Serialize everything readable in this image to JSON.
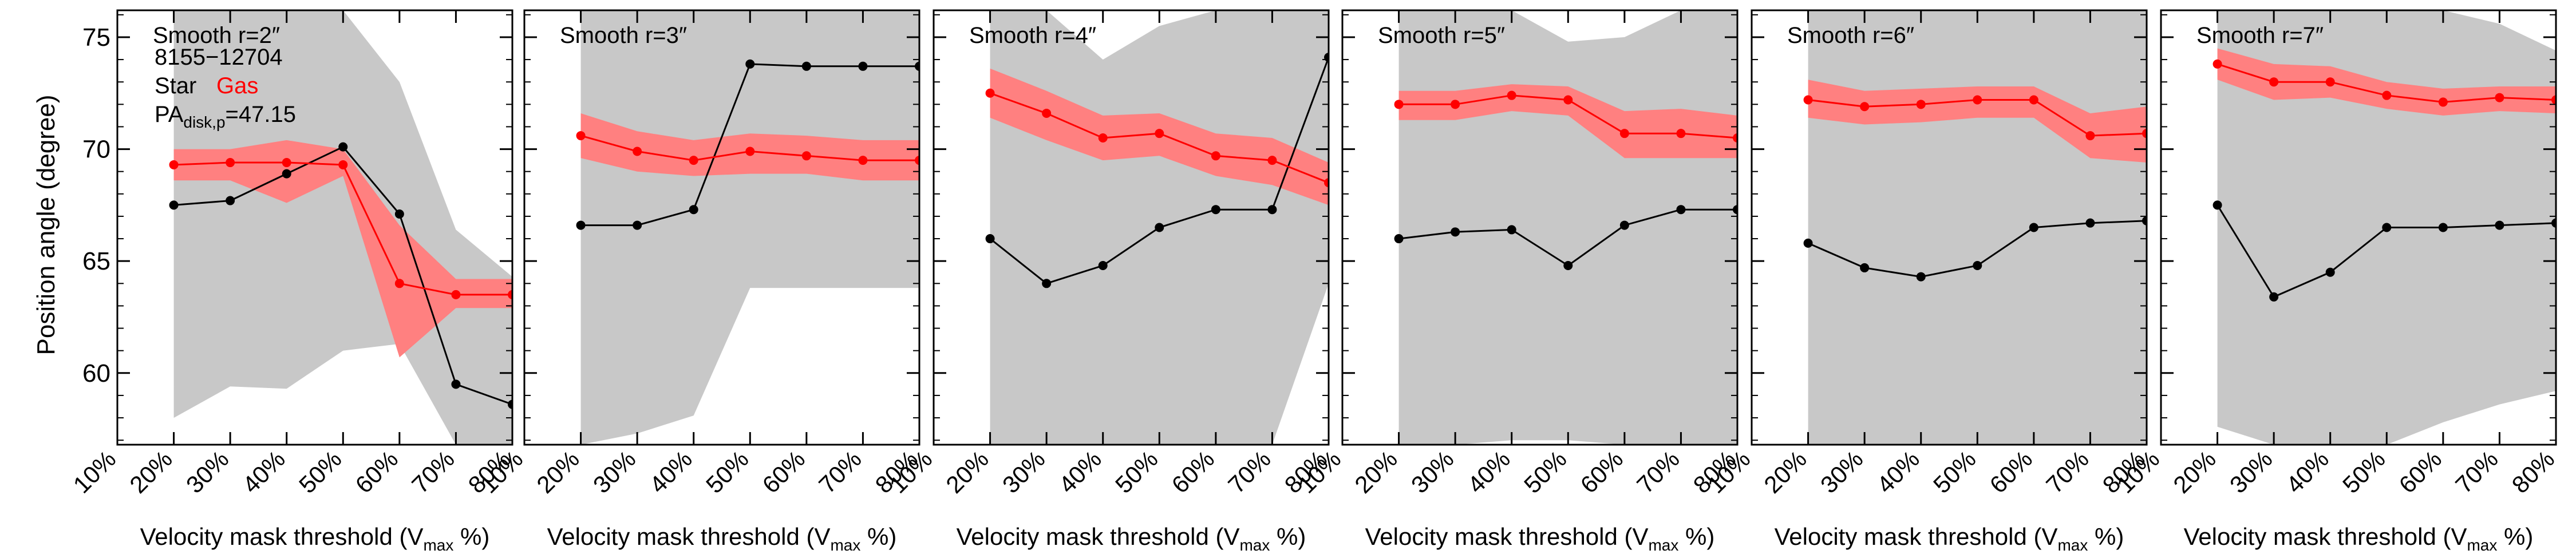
{
  "figure": {
    "object_id": "8155−12704",
    "legend_star": "Star",
    "legend_gas": "Gas",
    "pa_label_main": "PA",
    "pa_label_sub": "disk,p",
    "pa_label_value": "=47.15",
    "ylabel": "Position angle (degree)",
    "xlabel_main": "Velocity mask threshold (V",
    "xlabel_sub": "max",
    "xlabel_end": " %)"
  },
  "colors": {
    "star": "#000000",
    "gas": "#ff0000",
    "gas_band": "#ff8080",
    "star_band": "#c8c8c8"
  },
  "chart_data": [
    {
      "type": "line",
      "title": "Smooth r=2″",
      "x": [
        20,
        30,
        40,
        50,
        60,
        70,
        80
      ],
      "xticks": [
        "10%",
        "20%",
        "30%",
        "40%",
        "50%",
        "60%",
        "70%",
        "80%"
      ],
      "xlim": [
        10,
        80
      ],
      "ylim": [
        56.8,
        76.2
      ],
      "yticks": [
        60,
        65,
        70,
        75
      ],
      "series": [
        {
          "name": "Star",
          "values": [
            67.5,
            67.7,
            68.9,
            70.1,
            67.1,
            59.5,
            58.6
          ],
          "band_low": [
            58.0,
            59.4,
            59.3,
            61.0,
            61.3,
            56.8,
            56.8
          ],
          "band_high": [
            76.2,
            76.2,
            76.2,
            76.2,
            73.0,
            66.4,
            64.3
          ]
        },
        {
          "name": "Gas",
          "values": [
            69.3,
            69.4,
            69.4,
            69.3,
            64.0,
            63.5,
            63.5
          ],
          "band_low": [
            68.6,
            68.6,
            67.6,
            68.8,
            60.7,
            62.9,
            62.9
          ],
          "band_high": [
            70.0,
            70.0,
            70.4,
            70.0,
            66.6,
            64.2,
            64.2
          ]
        }
      ]
    },
    {
      "type": "line",
      "title": "Smooth r=3″",
      "x": [
        20,
        30,
        40,
        50,
        60,
        70,
        80
      ],
      "xticks": [
        "10%",
        "20%",
        "30%",
        "40%",
        "50%",
        "60%",
        "70%",
        "80%"
      ],
      "xlim": [
        10,
        80
      ],
      "ylim": [
        56.8,
        76.2
      ],
      "yticks": [
        60,
        65,
        70,
        75
      ],
      "series": [
        {
          "name": "Star",
          "values": [
            66.6,
            66.6,
            67.3,
            73.8,
            73.7,
            73.7,
            73.7
          ],
          "band_low": [
            56.8,
            57.3,
            58.1,
            63.8,
            63.8,
            63.8,
            63.8
          ],
          "band_high": [
            76.2,
            76.2,
            76.2,
            76.2,
            76.2,
            76.2,
            76.2
          ]
        },
        {
          "name": "Gas",
          "values": [
            70.6,
            69.9,
            69.5,
            69.9,
            69.7,
            69.5,
            69.5
          ],
          "band_low": [
            69.6,
            69.0,
            68.8,
            68.9,
            68.9,
            68.6,
            68.6
          ],
          "band_high": [
            71.6,
            70.8,
            70.4,
            70.7,
            70.6,
            70.4,
            70.4
          ]
        }
      ]
    },
    {
      "type": "line",
      "title": "Smooth r=4″",
      "x": [
        20,
        30,
        40,
        50,
        60,
        70,
        80
      ],
      "xticks": [
        "10%",
        "20%",
        "30%",
        "40%",
        "50%",
        "60%",
        "70%",
        "80%"
      ],
      "xlim": [
        10,
        80
      ],
      "ylim": [
        56.8,
        76.2
      ],
      "yticks": [
        60,
        65,
        70,
        75
      ],
      "series": [
        {
          "name": "Star",
          "values": [
            66.0,
            64.0,
            64.8,
            66.5,
            67.3,
            67.3,
            74.1
          ],
          "band_low": [
            56.8,
            56.8,
            56.8,
            56.8,
            56.8,
            56.8,
            64.0
          ],
          "band_high": [
            76.2,
            76.2,
            74.0,
            75.5,
            76.2,
            76.2,
            76.2
          ]
        },
        {
          "name": "Gas",
          "values": [
            72.5,
            71.6,
            70.5,
            70.7,
            69.7,
            69.5,
            68.5
          ],
          "band_low": [
            71.4,
            70.4,
            69.5,
            69.7,
            68.8,
            68.4,
            67.5
          ],
          "band_high": [
            73.6,
            72.6,
            71.5,
            71.6,
            70.7,
            70.5,
            69.4
          ]
        }
      ]
    },
    {
      "type": "line",
      "title": "Smooth r=5″",
      "x": [
        20,
        30,
        40,
        50,
        60,
        70,
        80
      ],
      "xticks": [
        "10%",
        "20%",
        "30%",
        "40%",
        "50%",
        "60%",
        "70%",
        "80%"
      ],
      "xlim": [
        10,
        80
      ],
      "ylim": [
        56.8,
        76.2
      ],
      "yticks": [
        60,
        65,
        70,
        75
      ],
      "series": [
        {
          "name": "Star",
          "values": [
            66.0,
            66.3,
            66.4,
            64.8,
            66.6,
            67.3,
            67.3
          ],
          "band_low": [
            56.8,
            56.8,
            57.0,
            57.0,
            56.8,
            56.8,
            56.8
          ],
          "band_high": [
            76.2,
            76.2,
            76.2,
            74.8,
            75.0,
            76.2,
            76.2
          ]
        },
        {
          "name": "Gas",
          "values": [
            72.0,
            72.0,
            72.4,
            72.2,
            70.7,
            70.7,
            70.5
          ],
          "band_low": [
            71.3,
            71.3,
            71.7,
            71.5,
            69.6,
            69.6,
            69.6
          ],
          "band_high": [
            72.6,
            72.6,
            72.9,
            72.8,
            71.7,
            71.8,
            71.5
          ]
        }
      ]
    },
    {
      "type": "line",
      "title": "Smooth r=6″",
      "x": [
        20,
        30,
        40,
        50,
        60,
        70,
        80
      ],
      "xticks": [
        "10%",
        "20%",
        "30%",
        "40%",
        "50%",
        "60%",
        "70%",
        "80%"
      ],
      "xlim": [
        10,
        80
      ],
      "ylim": [
        56.8,
        76.2
      ],
      "yticks": [
        60,
        65,
        70,
        75
      ],
      "series": [
        {
          "name": "Star",
          "values": [
            65.8,
            64.7,
            64.3,
            64.8,
            66.5,
            66.7,
            66.8
          ],
          "band_low": [
            56.8,
            56.8,
            56.8,
            56.8,
            56.8,
            56.8,
            56.8
          ],
          "band_high": [
            76.2,
            76.2,
            76.2,
            76.2,
            76.2,
            76.2,
            76.2
          ]
        },
        {
          "name": "Gas",
          "values": [
            72.2,
            71.9,
            72.0,
            72.2,
            72.2,
            70.6,
            70.7
          ],
          "band_low": [
            71.4,
            71.1,
            71.2,
            71.4,
            71.4,
            69.6,
            69.4
          ],
          "band_high": [
            73.1,
            72.6,
            72.7,
            72.8,
            72.8,
            71.6,
            71.9
          ]
        }
      ]
    },
    {
      "type": "line",
      "title": "Smooth r=7″",
      "x": [
        20,
        30,
        40,
        50,
        60,
        70,
        80
      ],
      "xticks": [
        "10%",
        "20%",
        "30%",
        "40%",
        "50%",
        "60%",
        "70%",
        "80%"
      ],
      "xlim": [
        10,
        80
      ],
      "ylim": [
        56.8,
        76.2
      ],
      "yticks": [
        60,
        65,
        70,
        75
      ],
      "series": [
        {
          "name": "Star",
          "values": [
            67.5,
            63.4,
            64.5,
            66.5,
            66.5,
            66.6,
            66.7
          ],
          "band_low": [
            57.6,
            56.8,
            56.8,
            56.8,
            57.8,
            58.6,
            59.2
          ],
          "band_high": [
            76.2,
            76.2,
            76.2,
            76.2,
            76.2,
            75.6,
            74.4
          ]
        },
        {
          "name": "Gas",
          "values": [
            73.8,
            73.0,
            73.0,
            72.4,
            72.1,
            72.3,
            72.2
          ],
          "band_low": [
            73.1,
            72.2,
            72.3,
            71.8,
            71.5,
            71.7,
            71.6
          ],
          "band_high": [
            74.5,
            73.8,
            73.7,
            73.0,
            72.7,
            72.8,
            72.8
          ]
        }
      ]
    }
  ]
}
